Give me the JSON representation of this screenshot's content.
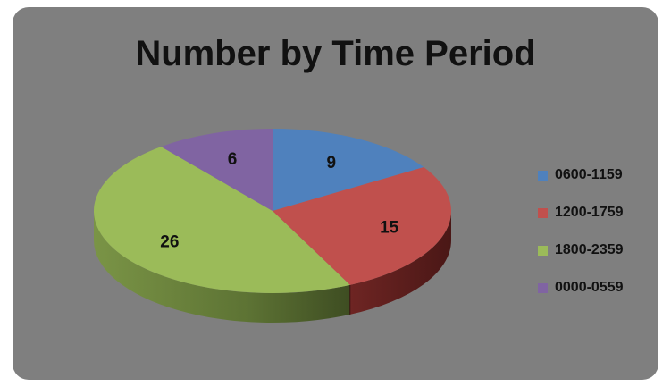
{
  "chart_data": {
    "type": "pie",
    "title": "Number by Time Period",
    "categories": [
      "0600-1159",
      "1200-1759",
      "1800-2359",
      "0000-0559"
    ],
    "values": [
      9,
      15,
      26,
      6
    ],
    "colors": [
      "#4f81bd",
      "#c0504d",
      "#9bbb59",
      "#8064a2"
    ],
    "legend_position": "right",
    "style": "3d"
  }
}
